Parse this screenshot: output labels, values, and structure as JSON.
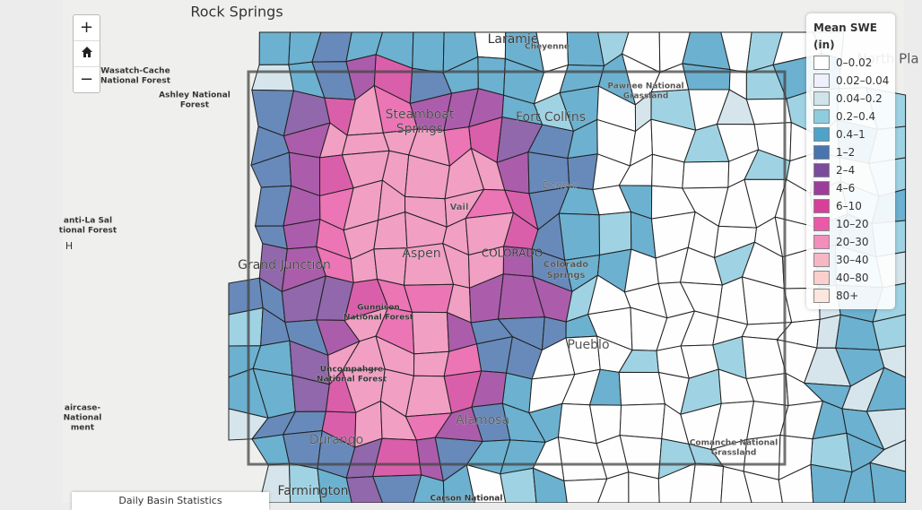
{
  "map": {
    "controls": {
      "zoom_in": "+",
      "zoom_out": "−"
    },
    "place_labels": [
      {
        "lines": [
          "Rock Springs"
        ]
      },
      {
        "lines": [
          "Laramie"
        ]
      },
      {
        "lines": [
          "Cheyenne"
        ]
      },
      {
        "lines": [
          "North Pla"
        ]
      },
      {
        "lines": [
          "Wasatch-Cache",
          "National Forest"
        ]
      },
      {
        "lines": [
          "Ashley National",
          "Forest"
        ]
      },
      {
        "lines": [
          "Pawnee National",
          "Grassland"
        ]
      },
      {
        "lines": [
          "Steamboat",
          "Springs"
        ]
      },
      {
        "lines": [
          "Fort Collins"
        ]
      },
      {
        "lines": [
          "Denver"
        ]
      },
      {
        "lines": [
          "Vail"
        ]
      },
      {
        "lines": [
          "anti-La Sal",
          "tional Forest"
        ]
      },
      {
        "lines": [
          "H"
        ]
      },
      {
        "lines": [
          "Grand Junction"
        ]
      },
      {
        "lines": [
          "Aspen"
        ]
      },
      {
        "lines": [
          "COLORADO"
        ]
      },
      {
        "lines": [
          "Colorado",
          "Springs"
        ]
      },
      {
        "lines": [
          "Gunnison",
          "National Forest"
        ]
      },
      {
        "lines": [
          "Pueblo"
        ]
      },
      {
        "lines": [
          "Uncompahgre",
          "National Forest"
        ]
      },
      {
        "lines": [
          "aircase-",
          "National",
          "ment"
        ]
      },
      {
        "lines": [
          "Alamosa"
        ]
      },
      {
        "lines": [
          "Durango"
        ]
      },
      {
        "lines": [
          "Comanche National",
          "Grassland"
        ]
      },
      {
        "lines": [
          "Farmington"
        ]
      },
      {
        "lines": [
          "Carson National"
        ]
      }
    ],
    "legend": {
      "title": [
        "Mean SWE",
        "(in)"
      ],
      "items": [
        {
          "label": "0–0.02",
          "color": "#ffffff"
        },
        {
          "label": "0.02–0.04",
          "color": "#eef0fb"
        },
        {
          "label": "0.04–0.2",
          "color": "#cfe3ea"
        },
        {
          "label": "0.2–0.4",
          "color": "#8ecde0"
        },
        {
          "label": "0.4–1",
          "color": "#4fa3c9"
        },
        {
          "label": "1–2",
          "color": "#4a74ae"
        },
        {
          "label": "2–4",
          "color": "#7b4b9c"
        },
        {
          "label": "4–6",
          "color": "#9c3d9c"
        },
        {
          "label": "6–10",
          "color": "#d6409b"
        },
        {
          "label": "10–20",
          "color": "#ea5aa8"
        },
        {
          "label": "20–30",
          "color": "#f38dbb"
        },
        {
          "label": "30–40",
          "color": "#f7b6c4"
        },
        {
          "label": "40–80",
          "color": "#fbd0cc"
        },
        {
          "label": "80+",
          "color": "#fde6dd"
        }
      ]
    },
    "footer": "Daily Basin Statistics"
  }
}
